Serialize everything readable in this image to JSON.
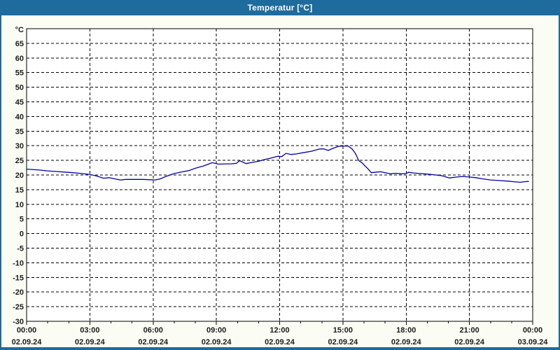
{
  "window": {
    "title": "Temperatur [°C]"
  },
  "colors": {
    "frame_blue": "#1E6B9E",
    "chart_background": "#FBFDF5",
    "plot_background": "#FFFFFF",
    "grid_color": "#000000",
    "label_color": "#1A1A1A",
    "line_color": "#0000AA"
  },
  "chart_data": {
    "type": "line",
    "title": "Temperatur [°C]",
    "y_unit_label": "°C",
    "ylim": [
      -30,
      70
    ],
    "y_tick_step": 5,
    "y_tick_labels": [
      65,
      60,
      55,
      50,
      45,
      40,
      35,
      30,
      25,
      20,
      15,
      10,
      5,
      0,
      -5,
      -10,
      -15,
      -20,
      -25,
      -30
    ],
    "xlim_hours": [
      0,
      24
    ],
    "x_major_step_hours": 3,
    "x_minor_step_hours": 1,
    "x_ticks": [
      {
        "time": "00:00",
        "date": "02.09.24"
      },
      {
        "time": "03:00",
        "date": "02.09.24"
      },
      {
        "time": "06:00",
        "date": "02.09.24"
      },
      {
        "time": "09:00",
        "date": "02.09.24"
      },
      {
        "time": "12:00",
        "date": "02.09.24"
      },
      {
        "time": "15:00",
        "date": "02.09.24"
      },
      {
        "time": "18:00",
        "date": "02.09.24"
      },
      {
        "time": "21:00",
        "date": "02.09.24"
      },
      {
        "time": "00:00",
        "date": "03.09.24"
      }
    ],
    "grid": "dashed",
    "legend": "none",
    "series": [
      {
        "name": "Temperatur",
        "color": "#0000AA",
        "points": [
          [
            0.0,
            22.0
          ],
          [
            0.25,
            21.9
          ],
          [
            0.6,
            21.7
          ],
          [
            1.0,
            21.4
          ],
          [
            1.4,
            21.2
          ],
          [
            1.8,
            21.0
          ],
          [
            2.2,
            20.8
          ],
          [
            2.6,
            20.5
          ],
          [
            3.0,
            20.2
          ],
          [
            3.3,
            19.7
          ],
          [
            3.65,
            18.9
          ],
          [
            3.9,
            19.1
          ],
          [
            4.1,
            18.8
          ],
          [
            4.45,
            18.3
          ],
          [
            4.7,
            18.5
          ],
          [
            5.1,
            18.5
          ],
          [
            5.5,
            18.5
          ],
          [
            5.8,
            18.4
          ],
          [
            6.1,
            18.3
          ],
          [
            6.35,
            18.7
          ],
          [
            6.6,
            19.5
          ],
          [
            7.0,
            20.5
          ],
          [
            7.4,
            21.1
          ],
          [
            7.7,
            21.5
          ],
          [
            8.0,
            22.3
          ],
          [
            8.4,
            23.1
          ],
          [
            8.8,
            24.2
          ],
          [
            9.1,
            23.7
          ],
          [
            9.4,
            23.8
          ],
          [
            9.7,
            23.8
          ],
          [
            9.95,
            24.0
          ],
          [
            10.1,
            24.9
          ],
          [
            10.4,
            23.9
          ],
          [
            10.7,
            24.3
          ],
          [
            11.0,
            24.7
          ],
          [
            11.3,
            25.3
          ],
          [
            11.6,
            25.8
          ],
          [
            11.9,
            26.4
          ],
          [
            12.1,
            26.3
          ],
          [
            12.3,
            27.4
          ],
          [
            12.55,
            27.0
          ],
          [
            12.8,
            27.2
          ],
          [
            13.1,
            27.6
          ],
          [
            13.5,
            28.1
          ],
          [
            13.9,
            28.9
          ],
          [
            14.1,
            28.9
          ],
          [
            14.3,
            28.4
          ],
          [
            14.6,
            29.3
          ],
          [
            14.8,
            29.8
          ],
          [
            15.0,
            29.9
          ],
          [
            15.25,
            29.9
          ],
          [
            15.45,
            28.8
          ],
          [
            15.6,
            27.3
          ],
          [
            15.75,
            24.9
          ],
          [
            15.9,
            24.2
          ],
          [
            16.05,
            23.1
          ],
          [
            16.2,
            22.0
          ],
          [
            16.35,
            20.8
          ],
          [
            16.6,
            21.0
          ],
          [
            16.8,
            21.1
          ],
          [
            17.0,
            20.8
          ],
          [
            17.25,
            20.4
          ],
          [
            17.5,
            20.6
          ],
          [
            17.75,
            20.4
          ],
          [
            18.0,
            20.5
          ],
          [
            18.1,
            20.9
          ],
          [
            18.35,
            20.7
          ],
          [
            18.65,
            20.5
          ],
          [
            19.0,
            20.3
          ],
          [
            19.3,
            20.1
          ],
          [
            19.65,
            19.8
          ],
          [
            20.05,
            19.0
          ],
          [
            20.4,
            19.3
          ],
          [
            20.7,
            19.5
          ],
          [
            21.0,
            19.3
          ],
          [
            21.3,
            19.1
          ],
          [
            21.6,
            18.7
          ],
          [
            22.0,
            18.3
          ],
          [
            22.4,
            18.1
          ],
          [
            22.85,
            17.9
          ],
          [
            23.1,
            17.7
          ],
          [
            23.4,
            17.5
          ],
          [
            23.6,
            17.7
          ],
          [
            23.8,
            17.8
          ]
        ]
      }
    ]
  }
}
